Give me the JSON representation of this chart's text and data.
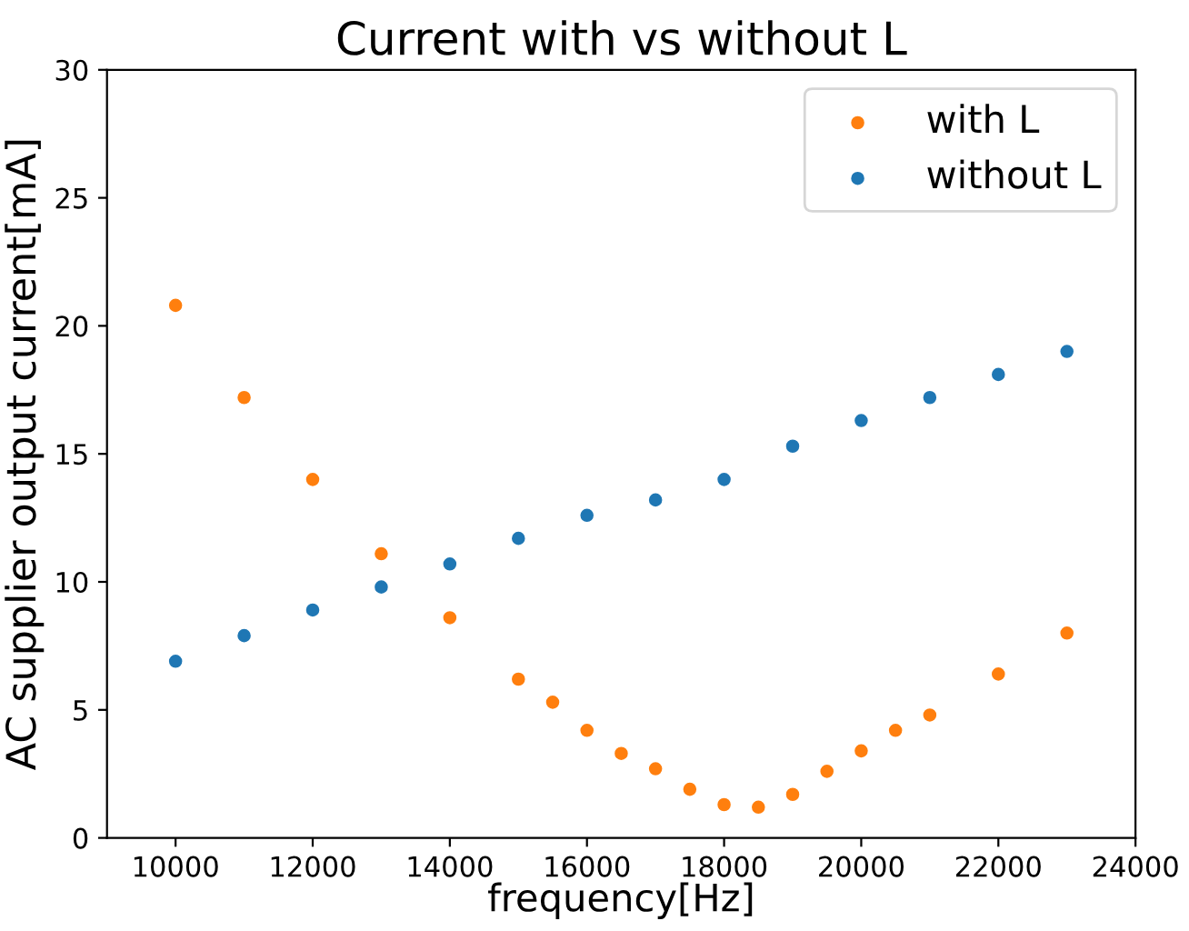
{
  "chart_data": {
    "type": "scatter",
    "title": "Current with vs without L",
    "xlabel": "frequency[Hz]",
    "ylabel": "AC supplier output current[mA]",
    "xlim": [
      9000,
      24000
    ],
    "xticks": [
      10000,
      12000,
      14000,
      16000,
      18000,
      20000,
      22000,
      24000
    ],
    "ylim": [
      0,
      30
    ],
    "yticks": [
      0,
      5,
      10,
      15,
      20,
      25,
      30
    ],
    "grid": false,
    "legend": "top right",
    "marker": "circle",
    "series": [
      {
        "name": "with L",
        "color": "#ff7f0e",
        "x": [
          10000,
          11000,
          12000,
          13000,
          14000,
          15000,
          15500,
          16000,
          16500,
          17000,
          17500,
          18000,
          18500,
          19000,
          19500,
          20000,
          20500,
          21000,
          22000,
          23000
        ],
        "values": [
          20.8,
          17.2,
          14.0,
          11.1,
          8.6,
          6.2,
          5.3,
          4.2,
          3.3,
          2.7,
          1.9,
          1.3,
          1.2,
          1.7,
          2.6,
          3.4,
          4.2,
          4.8,
          6.4,
          8.0
        ]
      },
      {
        "name": "without L",
        "color": "#1f77b4",
        "x": [
          10000,
          11000,
          12000,
          13000,
          14000,
          15000,
          16000,
          17000,
          18000,
          19000,
          20000,
          21000,
          22000,
          23000
        ],
        "values": [
          6.9,
          7.9,
          8.9,
          9.8,
          10.7,
          11.7,
          12.6,
          13.2,
          14.0,
          15.3,
          16.3,
          17.2,
          18.1,
          19.0
        ]
      }
    ]
  }
}
